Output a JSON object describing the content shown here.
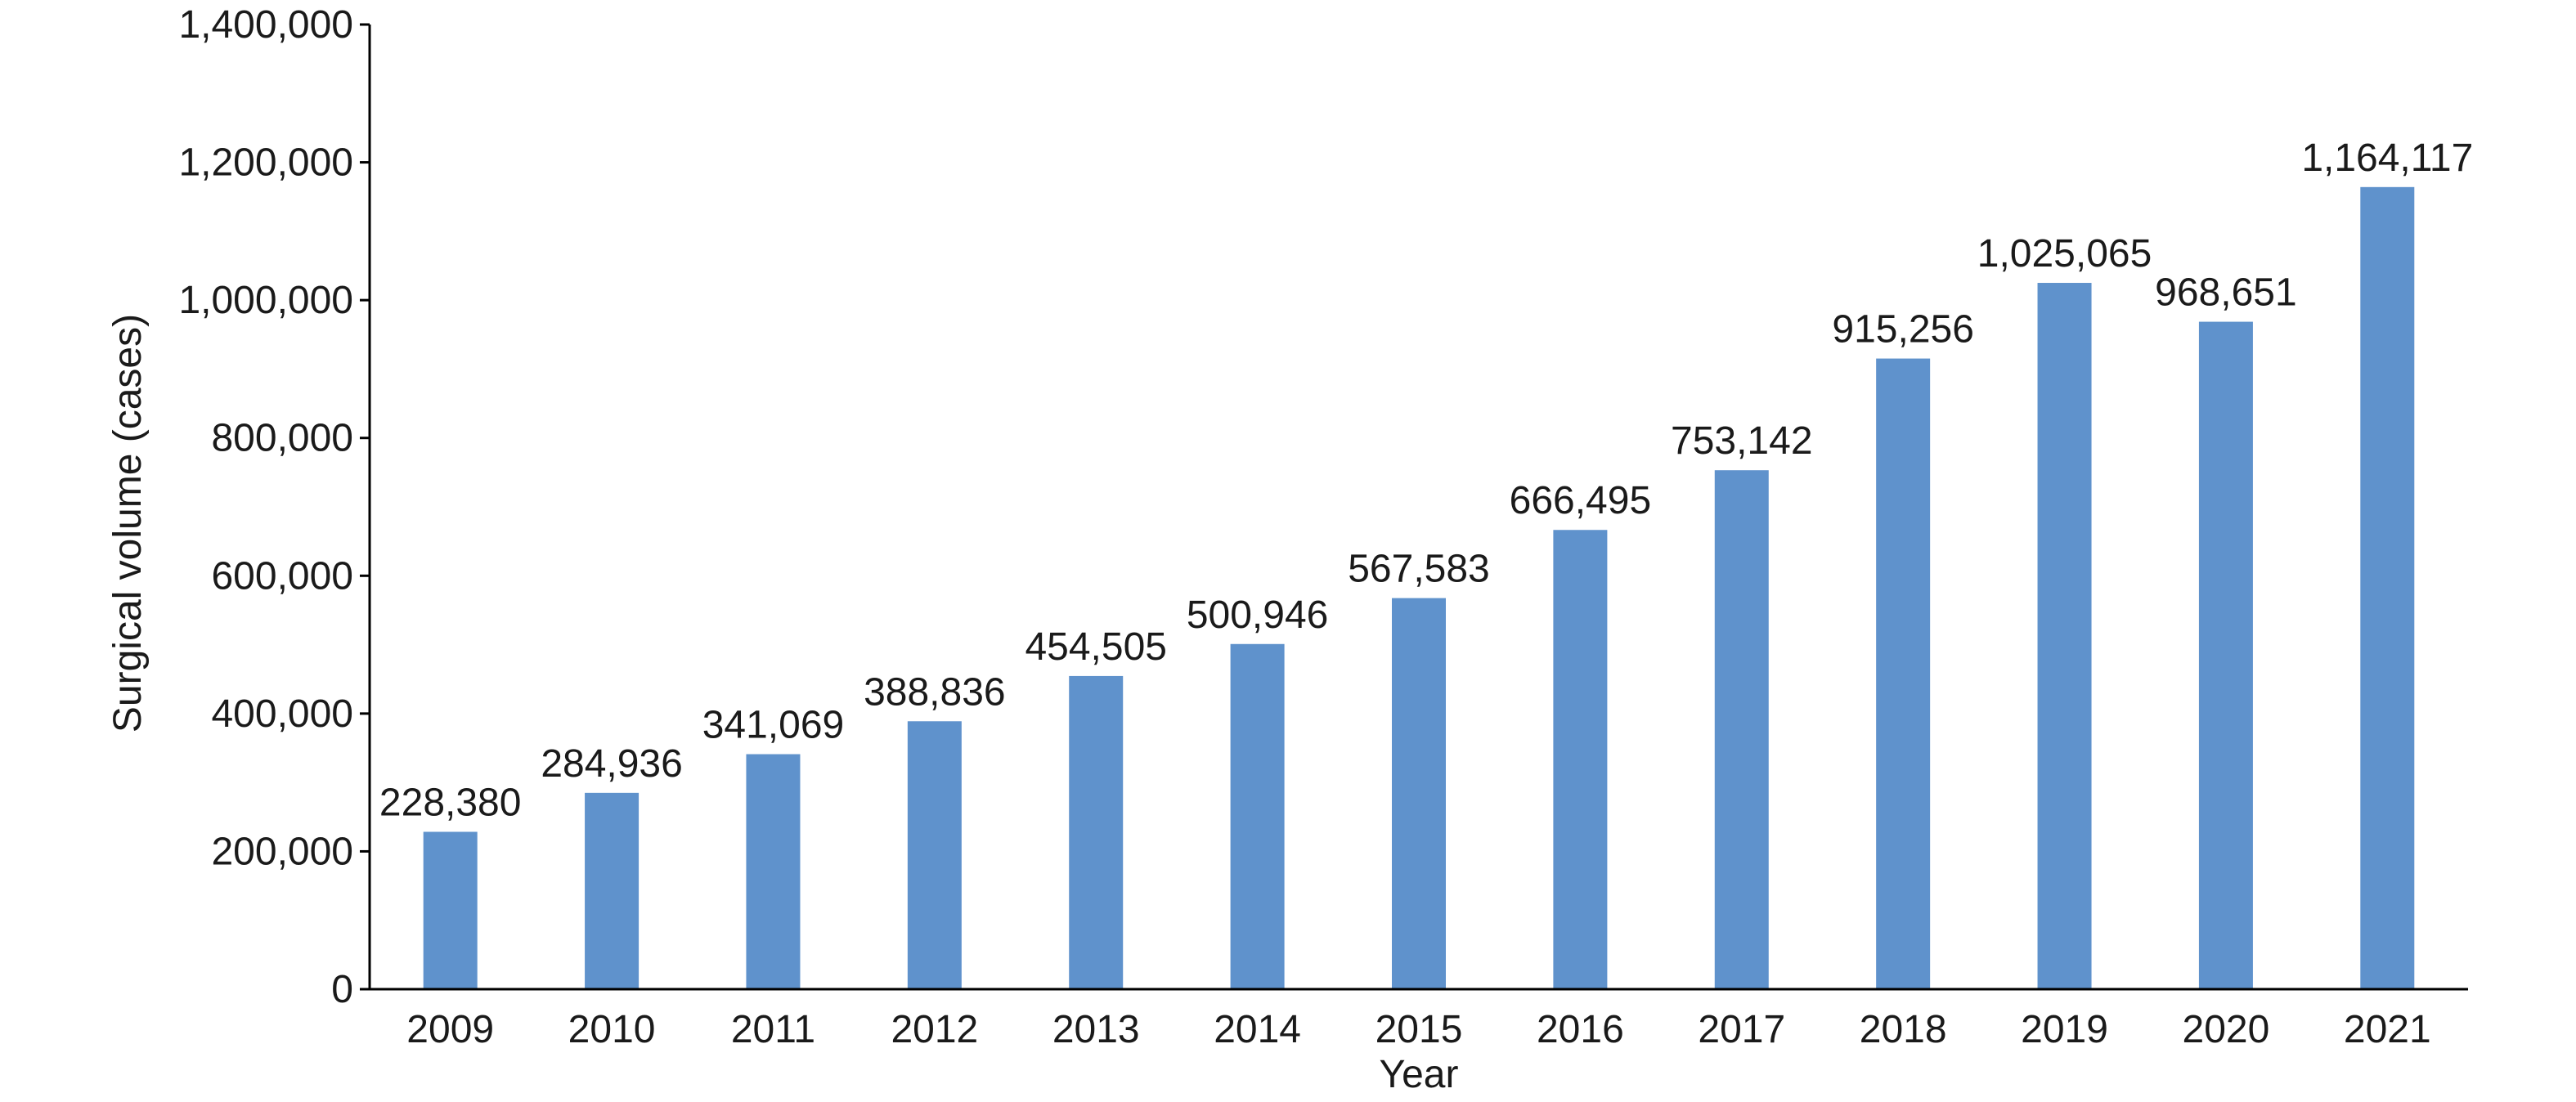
{
  "chart_data": {
    "type": "bar",
    "title": "",
    "xlabel": "Year",
    "ylabel": "Surgical volume (cases)",
    "categories": [
      "2009",
      "2010",
      "2011",
      "2012",
      "2013",
      "2014",
      "2015",
      "2016",
      "2017",
      "2018",
      "2019",
      "2020",
      "2021"
    ],
    "values": [
      228380,
      284936,
      341069,
      388836,
      454505,
      500946,
      567583,
      666495,
      753142,
      915256,
      1025065,
      968651,
      1164117
    ],
    "data_labels": [
      "228,380",
      "284,936",
      "341,069",
      "388,836",
      "454,505",
      "500,946",
      "567,583",
      "666,495",
      "753,142",
      "915,256",
      "1,025,065",
      "968,651",
      "1,164,117"
    ],
    "ylim": [
      0,
      1400000
    ],
    "yticks": [
      0,
      200000,
      400000,
      600000,
      800000,
      1000000,
      1200000,
      1400000
    ],
    "ytick_labels": [
      "0",
      "200,000",
      "400,000",
      "600,000",
      "800,000",
      "1,000,000",
      "1,200,000",
      "1,400,000"
    ],
    "grid": false,
    "legend": "none",
    "bar_color": "#5f92cc"
  }
}
